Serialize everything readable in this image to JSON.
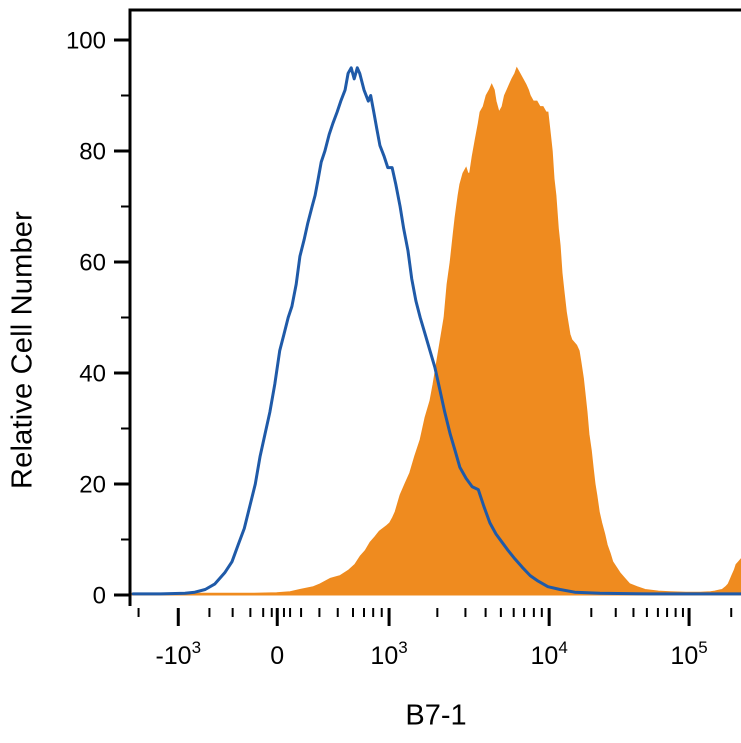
{
  "figure": {
    "background": "#ffffff",
    "axis_color": "#000000"
  },
  "chart_data": {
    "type": "area",
    "chart_kind": "flow-cytometry-histogram-overlay",
    "title": "",
    "xlabel": "B7-1",
    "ylabel": "Relative Cell Number",
    "x_scale": "biexponential",
    "x_encoding": "fraction of plot width (biexponential display scale)",
    "ylim": [
      0,
      100
    ],
    "grid": false,
    "legend": "none",
    "y_ticks": [
      0,
      20,
      40,
      60,
      80,
      100
    ],
    "y_minor_ticks": [
      10,
      30,
      50,
      70,
      90
    ],
    "x_ticks_major": [
      {
        "u": 0.079,
        "base": "-10",
        "exp": "3"
      },
      {
        "u": 0.241,
        "base": "0",
        "exp": ""
      },
      {
        "u": 0.424,
        "base": "10",
        "exp": "3"
      },
      {
        "u": 0.686,
        "base": "10",
        "exp": "4"
      },
      {
        "u": 0.915,
        "base": "10",
        "exp": "5"
      }
    ],
    "x_ticks_minor_u": [
      0.014,
      0.13,
      0.168,
      0.197,
      0.218,
      0.232,
      0.252,
      0.262,
      0.28,
      0.31,
      0.34,
      0.365,
      0.383,
      0.398,
      0.412,
      0.503,
      0.549,
      0.582,
      0.607,
      0.628,
      0.645,
      0.661,
      0.674,
      0.755,
      0.795,
      0.824,
      0.846,
      0.864,
      0.879,
      0.893,
      0.905,
      0.984
    ],
    "series": [
      {
        "name": "filled-histogram",
        "style": "filled",
        "color": "#EF8B1F",
        "points": [
          [
            0.0,
            0.3
          ],
          [
            0.2,
            0.3
          ],
          [
            0.24,
            0.4
          ],
          [
            0.262,
            0.6
          ],
          [
            0.278,
            1
          ],
          [
            0.3,
            1.5
          ],
          [
            0.311,
            2
          ],
          [
            0.328,
            3
          ],
          [
            0.344,
            3.5
          ],
          [
            0.358,
            4.5
          ],
          [
            0.368,
            5.5
          ],
          [
            0.377,
            7
          ],
          [
            0.385,
            8
          ],
          [
            0.393,
            9.5
          ],
          [
            0.401,
            10.5
          ],
          [
            0.408,
            11.5
          ],
          [
            0.414,
            12
          ],
          [
            0.42,
            12.5
          ],
          [
            0.425,
            13
          ],
          [
            0.43,
            14
          ],
          [
            0.434,
            15
          ],
          [
            0.442,
            18
          ],
          [
            0.45,
            20
          ],
          [
            0.458,
            22
          ],
          [
            0.466,
            25
          ],
          [
            0.475,
            28
          ],
          [
            0.483,
            32
          ],
          [
            0.491,
            35
          ],
          [
            0.496,
            38
          ],
          [
            0.502,
            42
          ],
          [
            0.508,
            46
          ],
          [
            0.514,
            50
          ],
          [
            0.519,
            56
          ],
          [
            0.524,
            60
          ],
          [
            0.529,
            65
          ],
          [
            0.532,
            68
          ],
          [
            0.537,
            72
          ],
          [
            0.54,
            74
          ],
          [
            0.545,
            76
          ],
          [
            0.55,
            77
          ],
          [
            0.553,
            76
          ],
          [
            0.556,
            76
          ],
          [
            0.56,
            79
          ],
          [
            0.565,
            82
          ],
          [
            0.57,
            85
          ],
          [
            0.573,
            87
          ],
          [
            0.578,
            88
          ],
          [
            0.583,
            90
          ],
          [
            0.588,
            91
          ],
          [
            0.592,
            92
          ],
          [
            0.596,
            91
          ],
          [
            0.599,
            89
          ],
          [
            0.604,
            87
          ],
          [
            0.609,
            88
          ],
          [
            0.613,
            90
          ],
          [
            0.617,
            91
          ],
          [
            0.621,
            92
          ],
          [
            0.625,
            93
          ],
          [
            0.63,
            94
          ],
          [
            0.633,
            95
          ],
          [
            0.638,
            94
          ],
          [
            0.643,
            93
          ],
          [
            0.648,
            92
          ],
          [
            0.652,
            91
          ],
          [
            0.655,
            90
          ],
          [
            0.66,
            89
          ],
          [
            0.666,
            89
          ],
          [
            0.671,
            88
          ],
          [
            0.676,
            88
          ],
          [
            0.681,
            87
          ],
          [
            0.684,
            87
          ],
          [
            0.688,
            83
          ],
          [
            0.691,
            80
          ],
          [
            0.694,
            75
          ],
          [
            0.697,
            72
          ],
          [
            0.701,
            66
          ],
          [
            0.704,
            63
          ],
          [
            0.707,
            58
          ],
          [
            0.71,
            55
          ],
          [
            0.714,
            51
          ],
          [
            0.717,
            49
          ],
          [
            0.72,
            47
          ],
          [
            0.723,
            46
          ],
          [
            0.727,
            45.5
          ],
          [
            0.731,
            45
          ],
          [
            0.735,
            44
          ],
          [
            0.738,
            42
          ],
          [
            0.742,
            39
          ],
          [
            0.745,
            36
          ],
          [
            0.748,
            33
          ],
          [
            0.751,
            29
          ],
          [
            0.755,
            26
          ],
          [
            0.758,
            23
          ],
          [
            0.761,
            20
          ],
          [
            0.764,
            18
          ],
          [
            0.768,
            15
          ],
          [
            0.772,
            13
          ],
          [
            0.777,
            11
          ],
          [
            0.781,
            9
          ],
          [
            0.786,
            7.5
          ],
          [
            0.79,
            6
          ],
          [
            0.796,
            5
          ],
          [
            0.802,
            4
          ],
          [
            0.81,
            3
          ],
          [
            0.818,
            2
          ],
          [
            0.83,
            1.5
          ],
          [
            0.843,
            1
          ],
          [
            0.865,
            0.7
          ],
          [
            0.884,
            0.6
          ],
          [
            0.91,
            0.5
          ],
          [
            0.933,
            0.5
          ],
          [
            0.95,
            0.6
          ],
          [
            0.957,
            0.7
          ],
          [
            0.965,
            0.9
          ],
          [
            0.969,
            1
          ],
          [
            0.975,
            1.5
          ],
          [
            0.979,
            2
          ],
          [
            0.983,
            3
          ],
          [
            0.985,
            3.5
          ],
          [
            0.989,
            4.5
          ],
          [
            0.992,
            5.5
          ],
          [
            0.996,
            6
          ],
          [
            1.0,
            6.5
          ]
        ]
      },
      {
        "name": "open-histogram",
        "style": "line",
        "color": "#1F5AA8",
        "line_width": 3,
        "points": [
          [
            0.005,
            0.2
          ],
          [
            0.05,
            0.2
          ],
          [
            0.09,
            0.3
          ],
          [
            0.106,
            0.5
          ],
          [
            0.123,
            1
          ],
          [
            0.139,
            2
          ],
          [
            0.155,
            4
          ],
          [
            0.167,
            6
          ],
          [
            0.177,
            9
          ],
          [
            0.187,
            12
          ],
          [
            0.196,
            16
          ],
          [
            0.205,
            20
          ],
          [
            0.213,
            25
          ],
          [
            0.221,
            29
          ],
          [
            0.229,
            33
          ],
          [
            0.237,
            38
          ],
          [
            0.245,
            44
          ],
          [
            0.252,
            47
          ],
          [
            0.259,
            50
          ],
          [
            0.265,
            52
          ],
          [
            0.272,
            56
          ],
          [
            0.278,
            61
          ],
          [
            0.285,
            64
          ],
          [
            0.291,
            67
          ],
          [
            0.298,
            70
          ],
          [
            0.303,
            72
          ],
          [
            0.308,
            75
          ],
          [
            0.313,
            78
          ],
          [
            0.319,
            80
          ],
          [
            0.326,
            83
          ],
          [
            0.332,
            85
          ],
          [
            0.339,
            87
          ],
          [
            0.345,
            89
          ],
          [
            0.352,
            91
          ],
          [
            0.357,
            94
          ],
          [
            0.362,
            95
          ],
          [
            0.367,
            93
          ],
          [
            0.372,
            95
          ],
          [
            0.376,
            94
          ],
          [
            0.383,
            91
          ],
          [
            0.39,
            89
          ],
          [
            0.394,
            90
          ],
          [
            0.399,
            87
          ],
          [
            0.404,
            84
          ],
          [
            0.409,
            81
          ],
          [
            0.416,
            79
          ],
          [
            0.422,
            77
          ],
          [
            0.429,
            77
          ],
          [
            0.435,
            74
          ],
          [
            0.442,
            70
          ],
          [
            0.448,
            66
          ],
          [
            0.455,
            62
          ],
          [
            0.461,
            57
          ],
          [
            0.468,
            53
          ],
          [
            0.475,
            50
          ],
          [
            0.483,
            47
          ],
          [
            0.491,
            44
          ],
          [
            0.499,
            41
          ],
          [
            0.507,
            37
          ],
          [
            0.515,
            33
          ],
          [
            0.524,
            29
          ],
          [
            0.532,
            26
          ],
          [
            0.54,
            23
          ],
          [
            0.55,
            21
          ],
          [
            0.56,
            19.5
          ],
          [
            0.57,
            19
          ],
          [
            0.579,
            16
          ],
          [
            0.589,
            13
          ],
          [
            0.599,
            11
          ],
          [
            0.609,
            9.5
          ],
          [
            0.619,
            8
          ],
          [
            0.63,
            6.5
          ],
          [
            0.642,
            5
          ],
          [
            0.655,
            3.5
          ],
          [
            0.668,
            2.5
          ],
          [
            0.684,
            1.5
          ],
          [
            0.704,
            1
          ],
          [
            0.728,
            0.5
          ],
          [
            0.769,
            0.3
          ],
          [
            0.85,
            0.2
          ],
          [
            1.0,
            0.2
          ]
        ]
      }
    ]
  }
}
